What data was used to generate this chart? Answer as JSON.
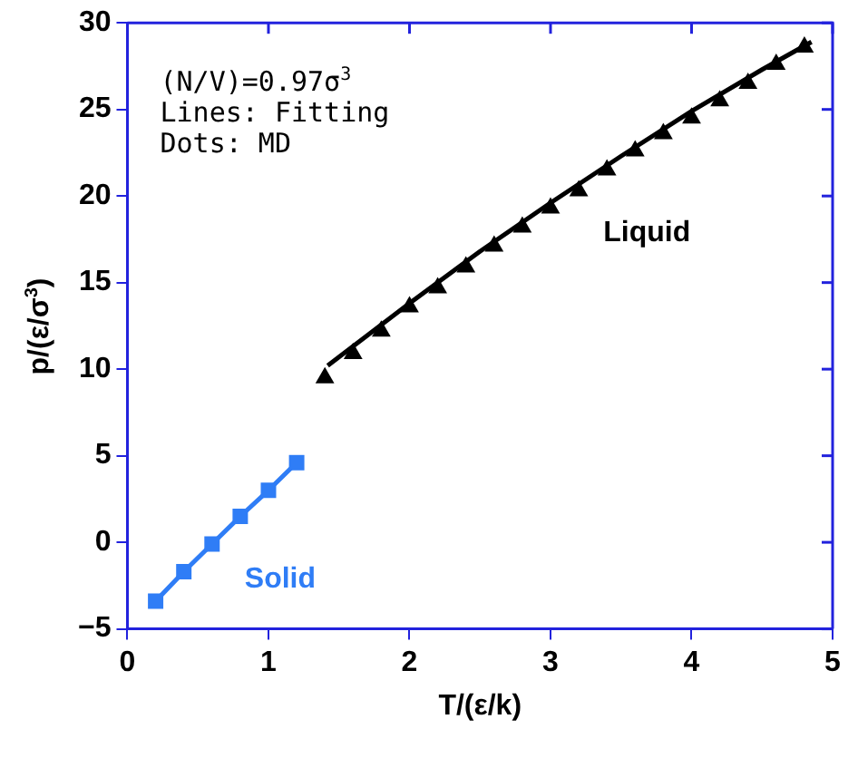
{
  "chart_data": {
    "type": "scatter",
    "xlabel": "T/(ε/k)",
    "ylabel": "p/(ε/σ$^{3}$)",
    "annotations": [
      "(N/V)=0.97σ$^{3}$",
      "Lines: Fitting",
      "Dots: MD"
    ],
    "xlim": [
      0,
      5
    ],
    "xticks": [
      0,
      1,
      2,
      3,
      4,
      5
    ],
    "ylim": [
      -5,
      30
    ],
    "yticks": [
      -5,
      0,
      5,
      10,
      15,
      20,
      25,
      30
    ],
    "grid": false,
    "legend": false,
    "series": [
      {
        "name": "Solid",
        "type": "line",
        "marker": "square",
        "color": "#2f7df6",
        "x": [
          0.2,
          0.4,
          0.6,
          0.8,
          1.0,
          1.2
        ],
        "values": [
          -3.4,
          -1.7,
          -0.1,
          1.5,
          3.0,
          4.6
        ]
      },
      {
        "name": "Liquid",
        "marker": "triangle",
        "color": "#000000",
        "x": [
          1.4,
          1.6,
          1.8,
          2.0,
          2.2,
          2.4,
          2.6,
          2.8,
          3.0,
          3.2,
          3.4,
          3.6,
          3.8,
          4.0,
          4.2,
          4.4,
          4.6,
          4.8
        ],
        "values": [
          9.5,
          10.9,
          12.2,
          13.6,
          14.7,
          15.9,
          17.1,
          18.2,
          19.3,
          20.3,
          21.5,
          22.6,
          23.6,
          24.5,
          25.5,
          26.5,
          27.6,
          28.6
        ]
      },
      {
        "type": "line",
        "marker": "none",
        "color": "#000000",
        "x": [
          1.42,
          2.0,
          2.5,
          3.0,
          3.5,
          4.0,
          4.5,
          4.85
        ],
        "values": [
          10.2,
          13.8,
          16.8,
          19.6,
          22.3,
          24.9,
          27.3,
          28.9
        ]
      }
    ]
  }
}
